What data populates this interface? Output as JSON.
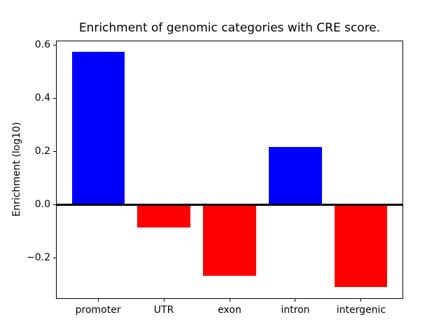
{
  "figure": {
    "background": "#ffffff"
  },
  "chart_data": {
    "type": "bar",
    "title": "Enrichment of genomic categories with CRE score.",
    "xlabel": "",
    "ylabel": "Enrichment (log10)",
    "categories": [
      "promoter",
      "UTR",
      "exon",
      "intron",
      "intergenic"
    ],
    "values": [
      0.575,
      -0.087,
      -0.269,
      0.216,
      -0.309
    ],
    "bar_colors": [
      "#0000ff",
      "#ff0000",
      "#ff0000",
      "#0000ff",
      "#ff0000"
    ],
    "positive_color": "#0000ff",
    "negative_color": "#ff0000",
    "bar_width": 0.8,
    "yticks": [
      0.6,
      0.4,
      0.2,
      0.0,
      -0.2
    ],
    "ytick_labels": [
      "0.6",
      "0.4",
      "0.2",
      "0.0",
      "−0.2"
    ],
    "ylim": [
      -0.355,
      0.616
    ],
    "xlim": [
      -0.64,
      4.64
    ],
    "zero_line": true,
    "grid": false,
    "legend": null,
    "axes_color": "#000000",
    "text_color": "#000000"
  }
}
